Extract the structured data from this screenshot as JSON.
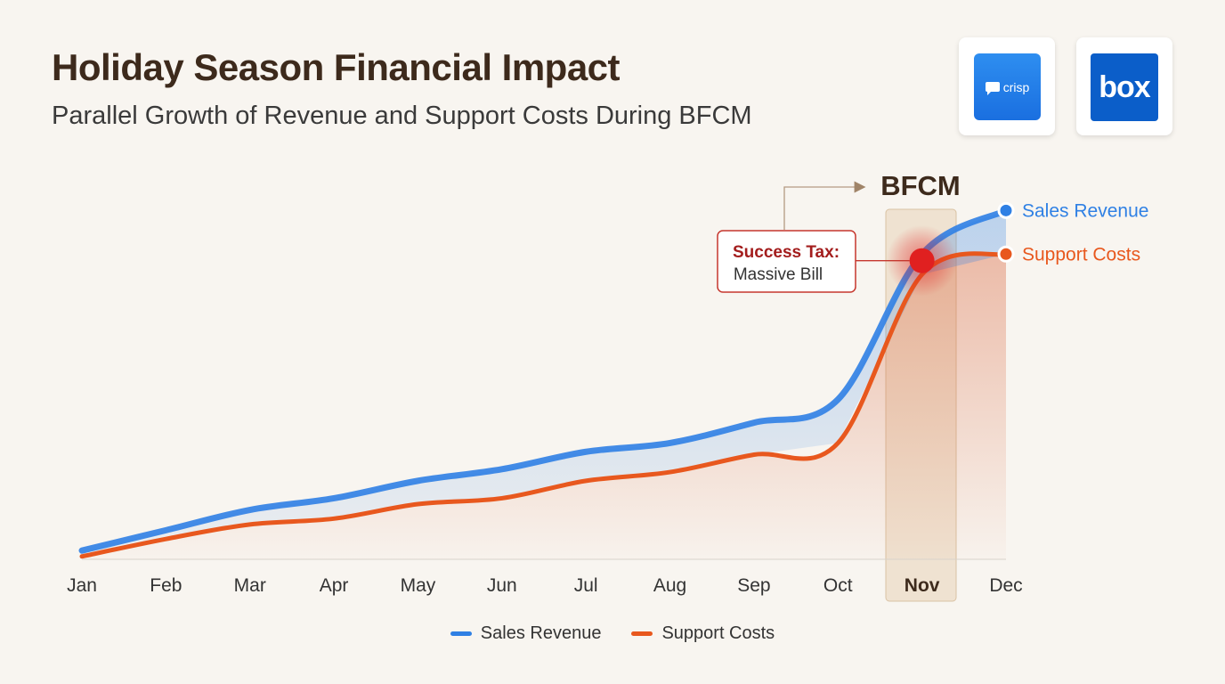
{
  "header": {
    "title": "Holiday Season Financial Impact",
    "subtitle": "Parallel Growth of Revenue and Support Costs During BFCM"
  },
  "logos": {
    "crisp": {
      "icon": "crisp-logo",
      "text": "crisp",
      "color": "#1f78e8"
    },
    "box": {
      "icon": "box-logo",
      "text": "box",
      "color": "#0b5ec9"
    }
  },
  "colors": {
    "revenue": "#2f80e4",
    "costs": "#e8581e",
    "highlight_band": "#e9d6bd",
    "callout_border": "#c6372e",
    "callout_title": "#a31d1d",
    "hotspot": "#e02020",
    "text_dark": "#3d2a1c"
  },
  "chart_data": {
    "type": "area",
    "title": "Holiday Season Financial Impact",
    "subtitle": "Parallel Growth of Revenue and Support Costs During BFCM",
    "categories": [
      "Jan",
      "Feb",
      "Mar",
      "Apr",
      "May",
      "Jun",
      "Jul",
      "Aug",
      "Sep",
      "Oct",
      "Nov",
      "Dec"
    ],
    "highlight_category": "Nov",
    "highlight_label": "BFCM",
    "series": [
      {
        "name": "Sales Revenue",
        "values": [
          3,
          10,
          17,
          21,
          27,
          31,
          37,
          40,
          47,
          55,
          105,
          120
        ]
      },
      {
        "name": "Support Costs",
        "values": [
          1,
          7,
          12,
          14,
          19,
          21,
          27,
          30,
          36,
          40,
          98,
          105
        ]
      }
    ],
    "ylim": [
      0,
      125
    ],
    "grid": false,
    "legend_position": "bottom-center",
    "annotation": {
      "title": "Success Tax:",
      "text": "Massive Bill",
      "category": "Nov"
    }
  }
}
